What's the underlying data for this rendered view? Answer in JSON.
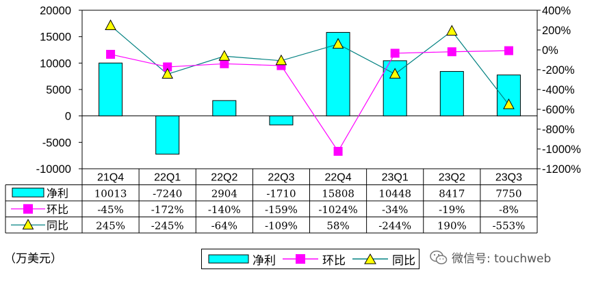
{
  "chart_data": {
    "type": "bar",
    "categories": [
      "21Q4",
      "22Q1",
      "22Q2",
      "22Q3",
      "22Q4",
      "23Q1",
      "23Q2",
      "23Q3"
    ],
    "series": [
      {
        "name": "净利",
        "kind": "bar",
        "axis": "left",
        "values": [
          10013,
          -7240,
          2904,
          -1710,
          15808,
          10448,
          8417,
          7750
        ],
        "labels": [
          "10013",
          "-7240",
          "2904",
          "-1710",
          "15808",
          "10448",
          "8417",
          "7750"
        ],
        "color": "#00FFFF"
      },
      {
        "name": "环比",
        "kind": "line",
        "axis": "right",
        "values": [
          -45,
          -172,
          -140,
          -159,
          -1024,
          -34,
          -19,
          -8
        ],
        "labels": [
          "-45%",
          "-172%",
          "-140%",
          "-159%",
          "-1024%",
          "-34%",
          "-19%",
          "-8%"
        ],
        "color": "#FF00FF"
      },
      {
        "name": "同比",
        "kind": "line",
        "axis": "right",
        "values": [
          245,
          -245,
          -64,
          -109,
          58,
          -244,
          190,
          -553
        ],
        "labels": [
          "245%",
          "-245%",
          "-64%",
          "-109%",
          "58%",
          "-244%",
          "190%",
          "-553%"
        ],
        "color": "#008080",
        "marker_color": "#FFFF00"
      }
    ],
    "left_axis": {
      "ylim": [
        -10000,
        20000
      ],
      "ticks": [
        "20000",
        "15000",
        "10000",
        "5000",
        "0",
        "-5000",
        "-10000"
      ]
    },
    "right_axis": {
      "ylim": [
        -1200,
        400
      ],
      "ticks": [
        "400%",
        "200%",
        "0%",
        "-200%",
        "-400%",
        "-600%",
        "-800%",
        "-1000%",
        "-1200%"
      ]
    },
    "grid": false,
    "legend": "bottom"
  },
  "unit_label": "（万美元）",
  "legend": {
    "items": [
      "净利",
      "环比",
      "同比"
    ]
  },
  "watermark": {
    "text": "微信号: touchweb",
    "icon": "wechat-icon"
  }
}
